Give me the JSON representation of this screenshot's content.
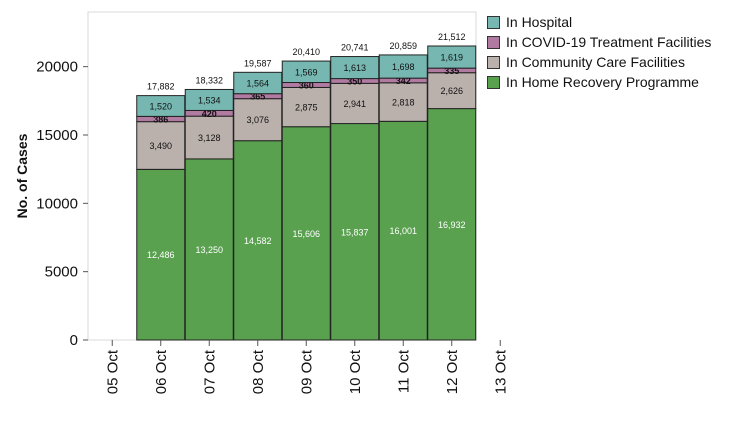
{
  "chart_data": {
    "type": "bar",
    "stacked": true,
    "ylabel": "No. of Cases",
    "xlabel": "",
    "ylim": [
      0,
      24000
    ],
    "yticks": [
      0,
      5000,
      10000,
      15000,
      20000
    ],
    "x_ticks": [
      "05 Oct",
      "06 Oct",
      "07 Oct",
      "08 Oct",
      "09 Oct",
      "10 Oct",
      "11 Oct",
      "12 Oct",
      "13 Oct"
    ],
    "categories": [
      "06 Oct",
      "07 Oct",
      "08 Oct",
      "09 Oct",
      "10 Oct",
      "11 Oct",
      "12 Oct"
    ],
    "series": [
      {
        "name": "In Home Recovery Programme",
        "color": "#59A14F",
        "values": [
          12486,
          13250,
          14582,
          15606,
          15837,
          16001,
          16932
        ]
      },
      {
        "name": "In Community Care Facilities",
        "color": "#BAB0AC",
        "values": [
          3490,
          3128,
          3076,
          2875,
          2941,
          2818,
          2626
        ]
      },
      {
        "name": "In COVID-19 Treatment Facilities",
        "color": "#B07AA1",
        "values": [
          386,
          420,
          365,
          360,
          350,
          342,
          335
        ]
      },
      {
        "name": "In Hospital",
        "color": "#76B7B2",
        "values": [
          1520,
          1534,
          1564,
          1569,
          1613,
          1698,
          1619
        ]
      }
    ],
    "totals": [
      17882,
      18332,
      19587,
      20410,
      20741,
      20859,
      21512
    ],
    "legend_position": "top-right",
    "grid": false
  }
}
